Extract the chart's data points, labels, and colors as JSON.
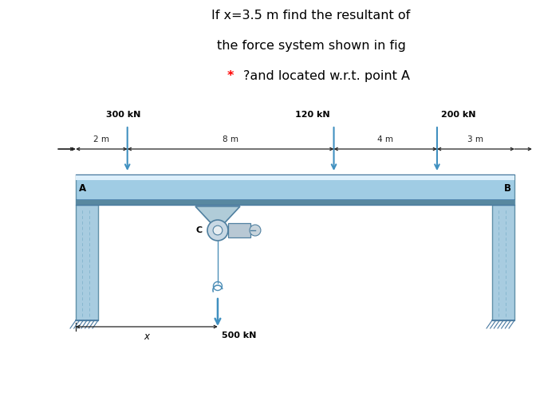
{
  "title_line1": "If x=3.5 m find the resultant of",
  "title_line2": "the force system shown in fig",
  "title_line3": "* ?and located w.r.t. point A",
  "bg_color": "#e8e8ee",
  "white_bg": "#ffffff",
  "beam_color_top": "#c8e4f4",
  "beam_color_mid": "#a0cce4",
  "beam_color_bot": "#78aac8",
  "col_color": "#a8cce0",
  "arrow_color": "#4090c0",
  "dim_line_color": "#222222",
  "force_300_label": "300 kN",
  "force_120_label": "120 kN",
  "force_200_label": "200 kN",
  "force_500_label": "500 kN",
  "dim_2m": "2 m",
  "dim_8m": "8 m",
  "dim_4m": "4 m",
  "dim_3m": "3 m",
  "label_A": "A",
  "label_B": "B",
  "label_C": "C",
  "label_x": "x",
  "title_fontsize": 11.5,
  "label_fontsize": 9
}
